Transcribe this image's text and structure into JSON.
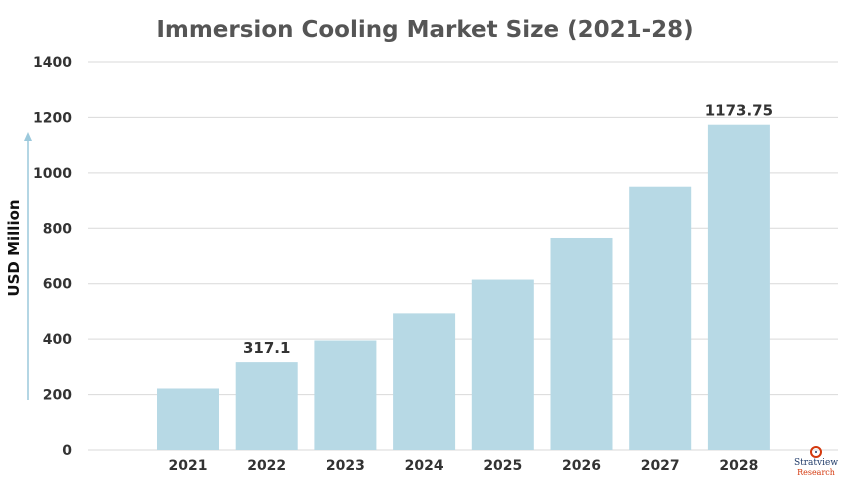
{
  "chart_data": {
    "type": "bar",
    "title": "Immersion Cooling Market Size (2021-28)",
    "xlabel": "",
    "ylabel": "USD Million",
    "categories": [
      "2021",
      "2022",
      "2023",
      "2024",
      "2025",
      "2026",
      "2027",
      "2028"
    ],
    "values": [
      222,
      317.1,
      395,
      493,
      615,
      765,
      950,
      1173.75
    ],
    "data_labels": {
      "1": "317.1",
      "7": "1173.75"
    },
    "ylim": [
      0,
      1400
    ],
    "yticks": [
      0,
      200,
      400,
      600,
      800,
      1000,
      1200,
      1400
    ],
    "grid": true,
    "colors": {
      "bar": "#b7d9e5",
      "axis_arrow": "#9cc9dc",
      "title": "#555555"
    }
  },
  "logo": {
    "brand": "Stratview",
    "sub": "Research"
  }
}
